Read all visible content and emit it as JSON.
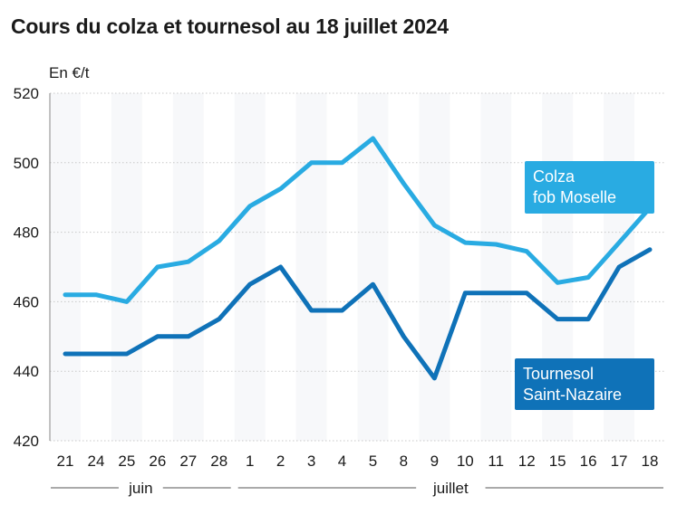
{
  "chart_data": {
    "type": "line",
    "title": "Cours du colza et tournesol au 18 juillet 2024",
    "ylabel": "En €/t",
    "xlabel": "",
    "ylim": [
      420,
      520
    ],
    "yticks": [
      420,
      440,
      460,
      480,
      500,
      520
    ],
    "grid": true,
    "categories": [
      "21",
      "24",
      "25",
      "26",
      "27",
      "28",
      "1",
      "2",
      "3",
      "4",
      "5",
      "8",
      "9",
      "10",
      "11",
      "12",
      "15",
      "16",
      "17",
      "18"
    ],
    "month_groups": [
      {
        "label": "juin",
        "start": 0,
        "end": 5
      },
      {
        "label": "juillet",
        "start": 6,
        "end": 19
      }
    ],
    "series": [
      {
        "name": "Colza fob Moselle",
        "label_lines": [
          "Colza",
          "fob Moselle"
        ],
        "color": "#29abe2",
        "values": [
          462,
          462,
          460,
          470,
          471.5,
          477.5,
          487.5,
          492.5,
          500,
          500,
          507,
          494,
          482,
          477,
          476.5,
          474.5,
          465.5,
          467,
          477,
          487
        ]
      },
      {
        "name": "Tournesol Saint-Nazaire",
        "label_lines": [
          "Tournesol",
          "Saint-Nazaire"
        ],
        "color": "#0f72b8",
        "values": [
          445,
          445,
          445,
          450,
          450,
          455,
          465,
          470,
          457.5,
          457.5,
          465,
          450,
          438,
          462.5,
          462.5,
          462.5,
          455,
          455,
          470,
          475
        ]
      }
    ]
  }
}
